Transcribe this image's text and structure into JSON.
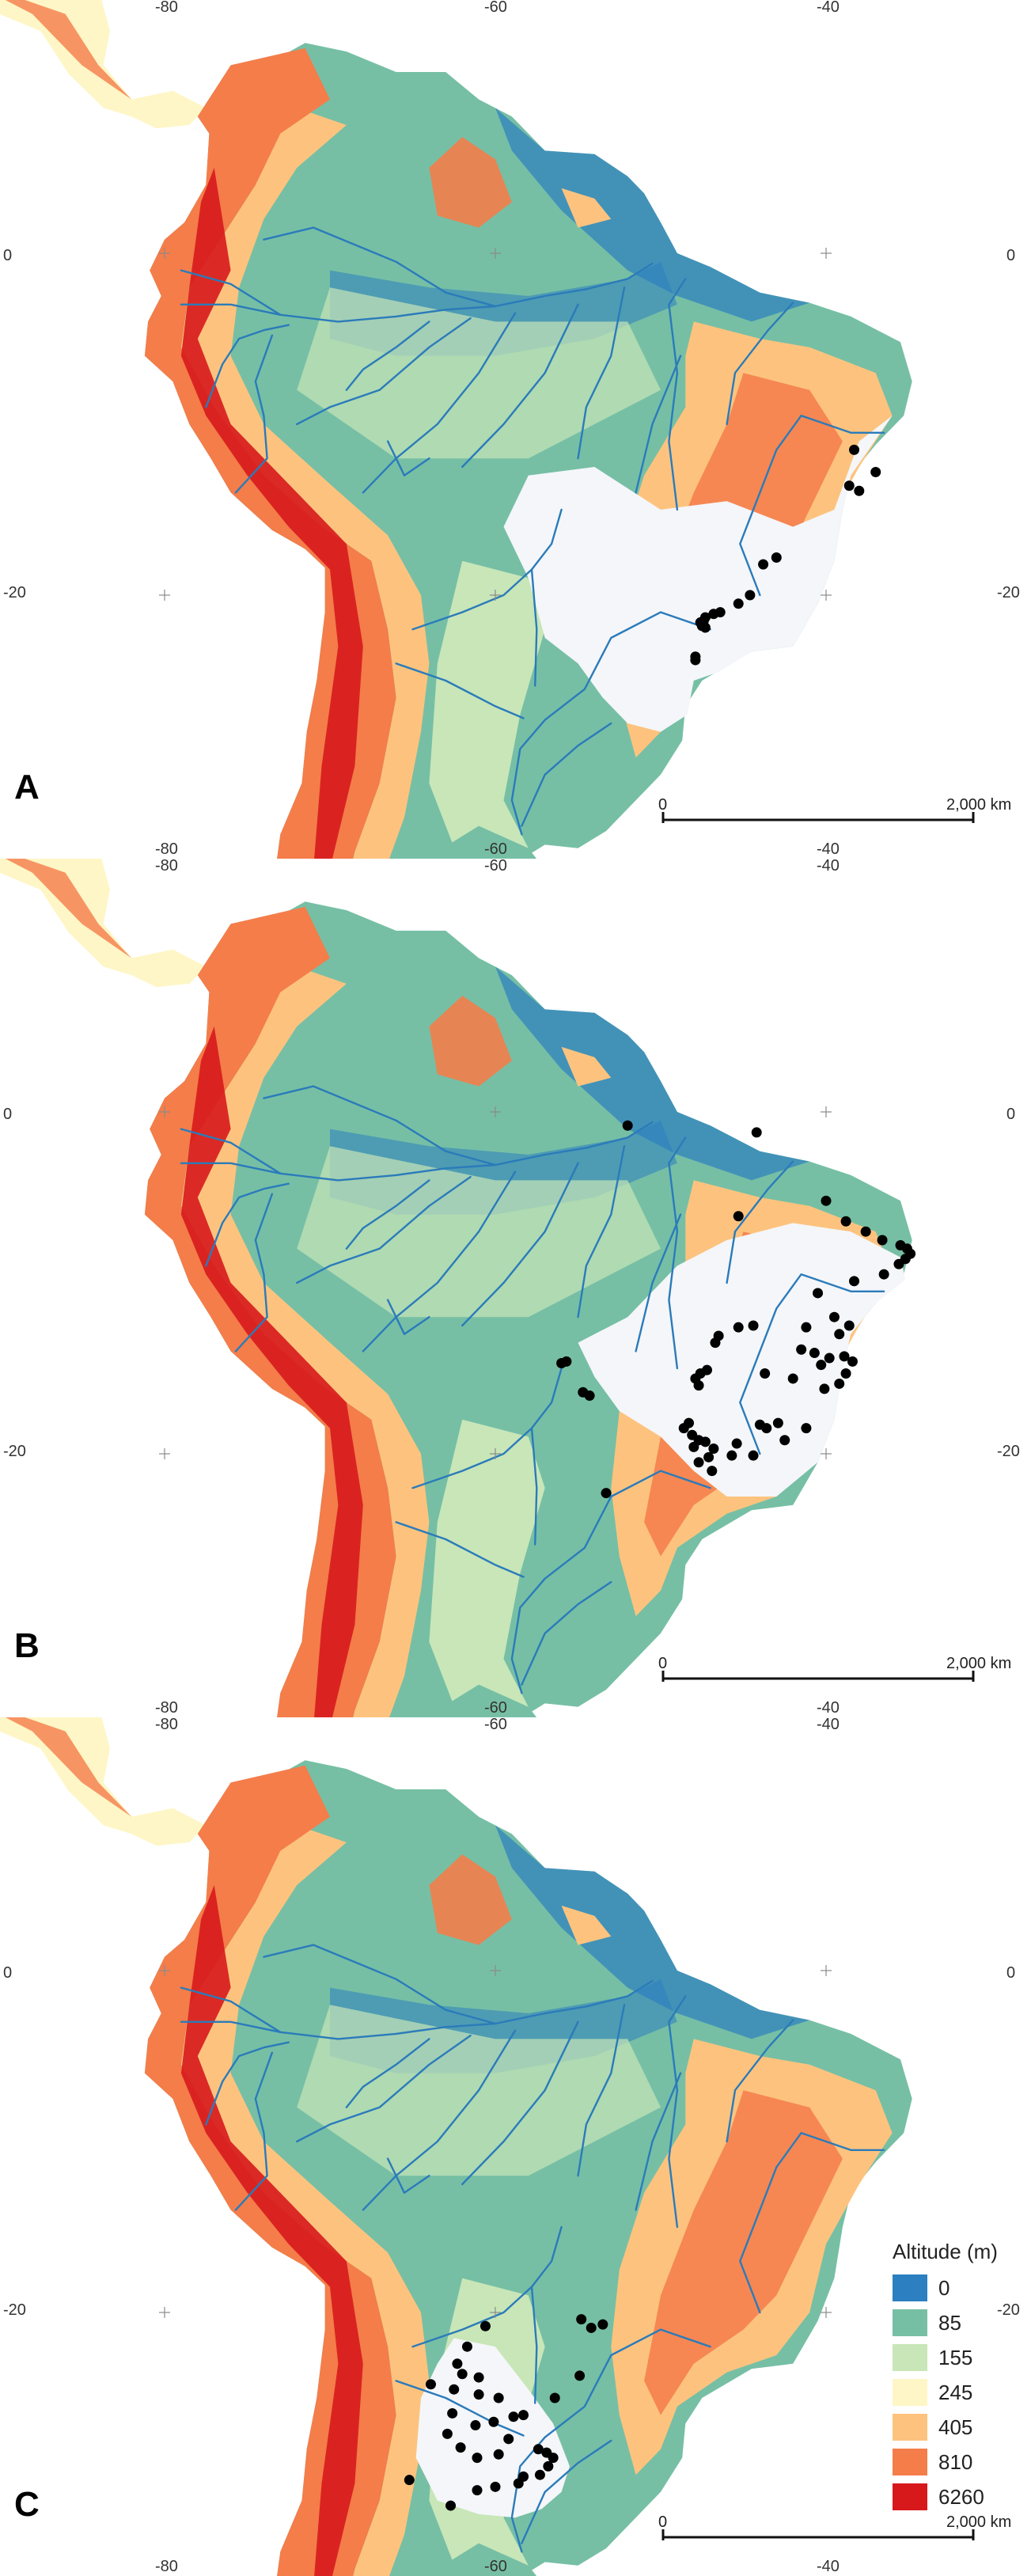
{
  "panels": [
    {
      "letter": "A",
      "lon_labels": [
        "-80",
        "-60",
        "-40"
      ],
      "lat_labels": [
        "0",
        "-20"
      ],
      "scale": {
        "start": "0",
        "end": "2,000 km"
      },
      "occurrence_points": [
        [
          -38.3,
          -11.5
        ],
        [
          -37.0,
          -12.8
        ],
        [
          -38.6,
          -13.6
        ],
        [
          -38.0,
          -13.9
        ],
        [
          -43.0,
          -17.8
        ],
        [
          -43.8,
          -18.2
        ],
        [
          -44.6,
          -20.0
        ],
        [
          -45.3,
          -20.5
        ],
        [
          -46.4,
          -21.0
        ],
        [
          -46.8,
          -21.1
        ],
        [
          -47.3,
          -21.3
        ],
        [
          -47.4,
          -21.5
        ],
        [
          -47.6,
          -21.6
        ],
        [
          -47.5,
          -21.8
        ],
        [
          -47.3,
          -21.9
        ],
        [
          -47.9,
          -23.6
        ],
        [
          -47.9,
          -23.8
        ]
      ]
    },
    {
      "letter": "B",
      "lon_labels": [
        "-80",
        "-60",
        "-40"
      ],
      "lat_labels": [
        "0",
        "-20"
      ],
      "scale": {
        "start": "0",
        "end": "2,000 km"
      },
      "occurrence_points": [
        [
          -52.0,
          -0.8
        ],
        [
          -44.2,
          -1.2
        ],
        [
          -45.3,
          -6.1
        ],
        [
          -40.0,
          -5.2
        ],
        [
          -38.8,
          -6.4
        ],
        [
          -37.6,
          -7.0
        ],
        [
          -36.6,
          -7.5
        ],
        [
          -35.5,
          -7.8
        ],
        [
          -35.1,
          -8.0
        ],
        [
          -34.9,
          -8.3
        ],
        [
          -35.2,
          -8.6
        ],
        [
          -35.6,
          -8.9
        ],
        [
          -36.5,
          -9.5
        ],
        [
          -38.3,
          -9.9
        ],
        [
          -40.5,
          -10.6
        ],
        [
          -39.5,
          -12.0
        ],
        [
          -38.6,
          -12.5
        ],
        [
          -41.2,
          -12.6
        ],
        [
          -39.2,
          -13.0
        ],
        [
          -44.4,
          -12.5
        ],
        [
          -45.3,
          -12.6
        ],
        [
          -46.5,
          -13.1
        ],
        [
          -46.7,
          -13.5
        ],
        [
          -41.5,
          -13.9
        ],
        [
          -40.7,
          -14.1
        ],
        [
          -39.8,
          -14.4
        ],
        [
          -40.3,
          -14.8
        ],
        [
          -38.9,
          -14.3
        ],
        [
          -38.4,
          -14.6
        ],
        [
          -38.8,
          -15.3
        ],
        [
          -47.6,
          -15.3
        ],
        [
          -47.9,
          -15.6
        ],
        [
          -47.7,
          -16.0
        ],
        [
          -47.2,
          -15.1
        ],
        [
          -43.7,
          -15.3
        ],
        [
          -42.0,
          -15.6
        ],
        [
          -40.1,
          -16.2
        ],
        [
          -39.2,
          -15.9
        ],
        [
          -55.7,
          -14.6
        ],
        [
          -56.0,
          -14.7
        ],
        [
          -54.7,
          -16.4
        ],
        [
          -54.3,
          -16.6
        ],
        [
          -48.3,
          -18.2
        ],
        [
          -48.6,
          -18.5
        ],
        [
          -48.1,
          -18.9
        ],
        [
          -47.3,
          -19.3
        ],
        [
          -46.8,
          -19.7
        ],
        [
          -47.7,
          -19.2
        ],
        [
          -48.0,
          -19.6
        ],
        [
          -47.1,
          -20.2
        ],
        [
          -47.7,
          -20.5
        ],
        [
          -46.9,
          -21.0
        ],
        [
          -45.4,
          -19.4
        ],
        [
          -44.0,
          -18.3
        ],
        [
          -43.6,
          -18.5
        ],
        [
          -42.9,
          -18.2
        ],
        [
          -42.5,
          -19.2
        ],
        [
          -41.2,
          -18.5
        ],
        [
          -44.4,
          -20.1
        ],
        [
          -45.7,
          -20.1
        ],
        [
          -53.3,
          -22.3
        ]
      ]
    },
    {
      "letter": "C",
      "lon_labels": [
        "-80",
        "-60",
        "-40"
      ],
      "lat_labels": [
        "0",
        "-20"
      ],
      "scale": {
        "start": "0",
        "end": "2,000 km"
      },
      "occurrence_points": [
        [
          -60.6,
          -20.8
        ],
        [
          -61.7,
          -22.0
        ],
        [
          -63.9,
          -24.2
        ],
        [
          -62.3,
          -23.0
        ],
        [
          -62.0,
          -23.6
        ],
        [
          -61.0,
          -23.8
        ],
        [
          -62.5,
          -24.5
        ],
        [
          -61.0,
          -24.8
        ],
        [
          -59.8,
          -25.0
        ],
        [
          -62.6,
          -25.9
        ],
        [
          -61.2,
          -26.6
        ],
        [
          -60.1,
          -26.4
        ],
        [
          -58.9,
          -26.1
        ],
        [
          -58.3,
          -26.0
        ],
        [
          -59.2,
          -27.4
        ],
        [
          -62.9,
          -27.1
        ],
        [
          -62.1,
          -27.9
        ],
        [
          -61.1,
          -28.5
        ],
        [
          -59.8,
          -28.3
        ],
        [
          -57.4,
          -28.0
        ],
        [
          -56.9,
          -28.2
        ],
        [
          -56.5,
          -28.5
        ],
        [
          -56.8,
          -29.0
        ],
        [
          -57.3,
          -29.5
        ],
        [
          -58.3,
          -29.6
        ],
        [
          -58.6,
          -30.0
        ],
        [
          -60.0,
          -30.2
        ],
        [
          -61.1,
          -30.4
        ],
        [
          -65.2,
          -29.8
        ],
        [
          -62.7,
          -31.3
        ],
        [
          -54.8,
          -20.4
        ],
        [
          -54.2,
          -20.9
        ],
        [
          -53.5,
          -20.7
        ],
        [
          -54.9,
          -23.7
        ],
        [
          -56.4,
          -25.0
        ]
      ]
    }
  ],
  "legend": {
    "title": "Altitude (m)",
    "items": [
      {
        "label": "0",
        "color": "#2c7fc0"
      },
      {
        "label": "85",
        "color": "#76bfa5"
      },
      {
        "label": "155",
        "color": "#c8e6b8"
      },
      {
        "label": "245",
        "color": "#fef6c6"
      },
      {
        "label": "405",
        "color": "#fdc37e"
      },
      {
        "label": "810",
        "color": "#f47d4a"
      },
      {
        "label": "6260",
        "color": "#d7191c"
      }
    ]
  },
  "map_style": {
    "ocean": "#ffffff",
    "river": "#2b7bba",
    "occurrence": "#000000",
    "prediction_area": "#f4f6f9"
  }
}
